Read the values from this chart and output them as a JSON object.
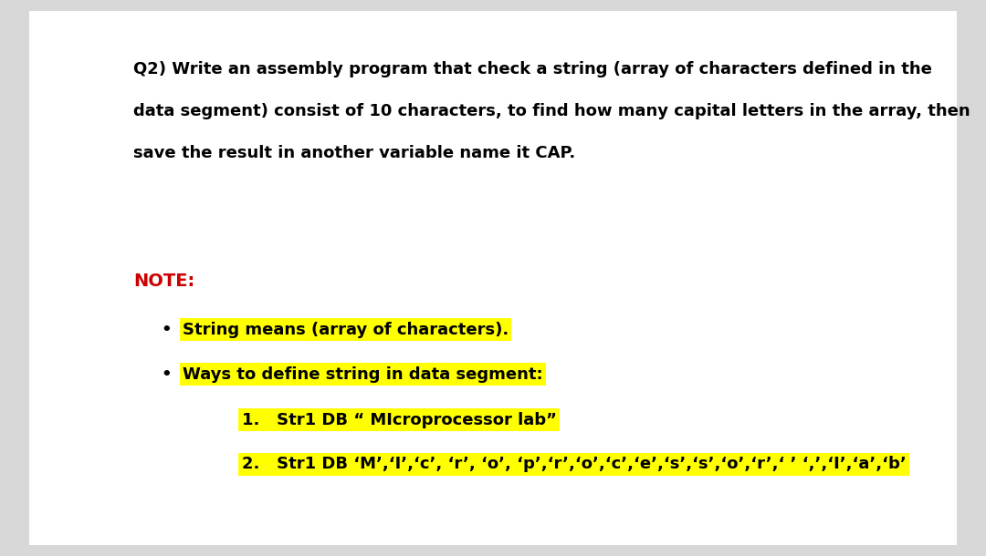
{
  "bg_color": "#d8d8d8",
  "page_color": "#ffffff",
  "title_text_line1": "Q2) Write an assembly program that check a string (array of characters defined in the",
  "title_text_line2": "data segment) consist of 10 characters, to find how many capital letters in the array, then",
  "title_text_line3": "save the result in another variable name it CAP.",
  "note_label": "NOTE:",
  "note_color": "#cc0000",
  "bullet1": "String means (array of characters).",
  "bullet2": "Ways to define string in data segment:",
  "item1": "1.   Str1 DB “ MIcroprocessor lab”",
  "item2": "2.   Str1 DB ‘M’,‘I’,‘c’, ‘r’, ‘o’, ‘p’,‘r’,‘o’,‘c’,‘e’,‘s’,‘s’,‘o’,‘r’,‘ ’ ‘,’,‘I’,‘a’,‘b’",
  "highlight_color": "#ffff00",
  "text_color": "#000000",
  "bold_font_size": 13.0,
  "note_font_size": 14.0
}
